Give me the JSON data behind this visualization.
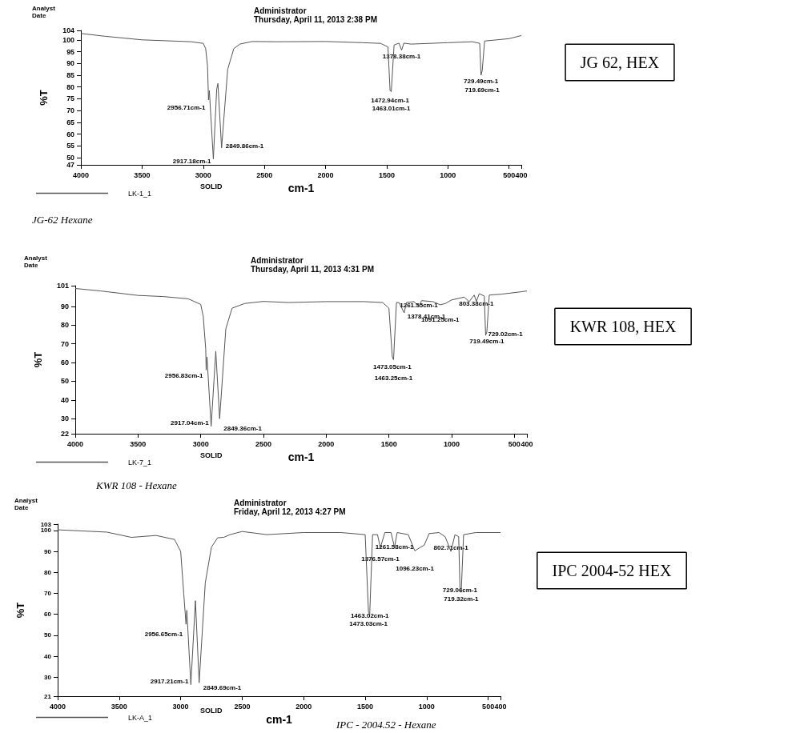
{
  "chart_data": [
    {
      "type": "line",
      "title": "Administrator",
      "subtitle": "Thursday, April 11, 2013 2:38 PM",
      "xlabel": "cm-1",
      "ylabel": "%T",
      "legend": "bottom left",
      "marker": "none",
      "line_style": "solid",
      "xlim": [
        4000,
        400
      ],
      "xticks": [
        4000,
        3500,
        3000,
        2500,
        2000,
        1500,
        1000,
        500,
        400
      ],
      "ylim": [
        47,
        104
      ],
      "yticks": [
        47,
        50,
        55,
        60,
        65,
        70,
        75,
        80,
        85,
        90,
        95,
        100,
        104
      ],
      "x": [
        4000,
        3800,
        3500,
        3300,
        3100,
        3000,
        2980,
        2965,
        2956.71,
        2950,
        2917.18,
        2890,
        2880,
        2849.86,
        2800,
        2750,
        2700,
        2600,
        2400,
        2000,
        1700,
        1550,
        1490,
        1472.94,
        1463.01,
        1440,
        1400,
        1378.38,
        1360,
        1300,
        1000,
        800,
        740,
        729.49,
        719.69,
        700,
        500,
        400
      ],
      "series": [
        {
          "name": "LK-1_1",
          "color": "#555555",
          "values": [
            102.7,
            101.5,
            100,
            99.6,
            99.2,
            98.5,
            96.3,
            89,
            74.5,
            78.5,
            49.5,
            79,
            81.5,
            54.2,
            87.5,
            96.3,
            98.2,
            99.3,
            99.2,
            99.3,
            98.8,
            98.5,
            97,
            78.5,
            78,
            97.8,
            98.6,
            95.6,
            98.6,
            98.2,
            98.8,
            99.2,
            98.5,
            85,
            87,
            99.5,
            100.5,
            101.8
          ]
        }
      ],
      "annotations": [
        "Analyst",
        "Date",
        "SOLID",
        "JG-62 Hexane",
        "JG 62, HEX",
        {
          "text": "2956.71cm-1",
          "x": 2956.71,
          "y": 74.5
        },
        {
          "text": "2917.18cm-1",
          "x": 2917.18,
          "y": 49.5
        },
        {
          "text": "2849.86cm-1",
          "x": 2849.86,
          "y": 54.2
        },
        {
          "text": "1378.38cm-1",
          "x": 1378.38,
          "y": 95.6
        },
        {
          "text": "1472.94cm-1",
          "x": 1472.94,
          "y": 78.5
        },
        {
          "text": "1463.01cm-1",
          "x": 1463.01,
          "y": 78
        },
        {
          "text": "729.49cm-1",
          "x": 729.49,
          "y": 85
        },
        {
          "text": "719.69cm-1",
          "x": 719.69,
          "y": 87
        }
      ]
    },
    {
      "type": "line",
      "title": "Administrator",
      "subtitle": "Thursday, April 11, 2013 4:31 PM",
      "xlabel": "cm-1",
      "ylabel": "%T",
      "legend": "bottom left",
      "marker": "none",
      "line_style": "solid",
      "xlim": [
        4000,
        400
      ],
      "xticks": [
        4000,
        3500,
        3000,
        2500,
        2000,
        1500,
        1000,
        500,
        400
      ],
      "ylim": [
        22,
        101
      ],
      "yticks": [
        22,
        30,
        40,
        50,
        60,
        70,
        80,
        90,
        101
      ],
      "x": [
        4000,
        3800,
        3500,
        3300,
        3100,
        3000,
        2980,
        2960,
        2956.83,
        2950,
        2917.04,
        2880,
        2849.36,
        2800,
        2750,
        2650,
        2500,
        2300,
        2000,
        1700,
        1550,
        1500,
        1473.05,
        1463.25,
        1440,
        1420,
        1378.41,
        1360,
        1300,
        1261.55,
        1240,
        1150,
        1091.25,
        1050,
        1000,
        900,
        860,
        820,
        803.38,
        780,
        740,
        729.02,
        719.49,
        700,
        600,
        450,
        400
      ],
      "series": [
        {
          "name": "LK-7_1",
          "color": "#555555",
          "values": [
            99.5,
            98.2,
            95.8,
            95.2,
            94,
            91,
            84.6,
            67,
            56,
            63,
            26,
            66,
            30,
            78,
            89,
            91.5,
            92.6,
            92,
            92.5,
            92.5,
            92,
            89,
            63,
            61.5,
            92,
            92,
            86.5,
            92,
            92.5,
            89.7,
            93,
            92.5,
            90.8,
            91.5,
            93.4,
            94.9,
            92.5,
            96,
            92.6,
            96.7,
            95.5,
            74.5,
            76.3,
            96,
            96.5,
            97.7,
            98.2
          ]
        }
      ],
      "annotations": [
        "Analyst",
        "Date",
        "SOLID",
        "KWR 108 - Hexane",
        "KWR 108, HEX",
        {
          "text": "2956.83cm-1",
          "x": 2956.83,
          "y": 56
        },
        {
          "text": "2917.04cm-1",
          "x": 2917.04,
          "y": 26
        },
        {
          "text": "2849.36cm-1",
          "x": 2849.36,
          "y": 30
        },
        {
          "text": "1473.05cm-1",
          "x": 1473.05,
          "y": 63
        },
        {
          "text": "1463.25cm-1",
          "x": 1463.25,
          "y": 61.5
        },
        {
          "text": "1378.41cm-1",
          "x": 1378.41,
          "y": 86.5
        },
        {
          "text": "1261.55cm-1",
          "x": 1261.55,
          "y": 89.7
        },
        {
          "text": "1091.25cm-1",
          "x": 1091.25,
          "y": 90.8
        },
        {
          "text": "803.38cm-1",
          "x": 803.38,
          "y": 92.6
        },
        {
          "text": "729.02cm-1",
          "x": 729.02,
          "y": 74.5
        },
        {
          "text": "719.49cm-1",
          "x": 719.49,
          "y": 76.3
        }
      ]
    },
    {
      "type": "line",
      "title": "Administrator",
      "subtitle": "Friday, April 12, 2013 4:27 PM",
      "xlabel": "cm-1",
      "ylabel": "%T",
      "legend": "bottom left",
      "marker": "none",
      "line_style": "solid",
      "xlim": [
        4000,
        400
      ],
      "xticks": [
        4000,
        3500,
        3000,
        2500,
        2000,
        1500,
        1000,
        500,
        400
      ],
      "ylim": [
        21,
        103
      ],
      "yticks": [
        21,
        30,
        40,
        50,
        60,
        70,
        80,
        90,
        100,
        103
      ],
      "x": [
        4000,
        3600,
        3400,
        3200,
        3050,
        3000,
        2975,
        2956.65,
        2950,
        2917.21,
        2880,
        2849.69,
        2800,
        2750,
        2700,
        2650,
        2600,
        2500,
        2300,
        2000,
        1700,
        1500,
        1473.03,
        1463.02,
        1440,
        1400,
        1376.57,
        1340,
        1290,
        1261.58,
        1240,
        1150,
        1096.23,
        1050,
        1020,
        980,
        900,
        850,
        802.71,
        770,
        740,
        729.06,
        719.32,
        700,
        600,
        400
      ],
      "series": [
        {
          "name": "LK-A_1",
          "color": "#555555",
          "values": [
            100.3,
            99.2,
            96.7,
            97.6,
            95.7,
            90,
            70,
            55.3,
            62,
            26.5,
            66.5,
            27.4,
            75,
            92,
            96.5,
            96.7,
            98,
            99.5,
            98,
            99,
            99,
            98,
            61,
            60,
            98,
            98,
            91.8,
            99,
            99,
            92,
            99,
            98,
            90.3,
            92,
            93,
            98.5,
            99,
            97,
            90,
            98,
            97,
            72,
            70.5,
            98,
            99,
            99
          ]
        }
      ],
      "annotations": [
        "Analyst",
        "Date",
        "SOLID",
        "IPC - 2004.52 - Hexane",
        "IPC 2004-52 HEX",
        {
          "text": "2956.65cm-1",
          "x": 2956.65,
          "y": 55.3
        },
        {
          "text": "2917.21cm-1",
          "x": 2917.21,
          "y": 26.5
        },
        {
          "text": "2849.69cm-1",
          "x": 2849.69,
          "y": 27.4
        },
        {
          "text": "1463.02cm-1",
          "x": 1463.02,
          "y": 60
        },
        {
          "text": "1473.03cm-1",
          "x": 1473.03,
          "y": 61
        },
        {
          "text": "1261.58cm-1",
          "x": 1261.58,
          "y": 92
        },
        {
          "text": "1376.57cm-1",
          "x": 1376.57,
          "y": 91.8
        },
        {
          "text": "1096.23cm-1",
          "x": 1096.23,
          "y": 90.3
        },
        {
          "text": "802.71cm-1",
          "x": 802.71,
          "y": 90
        },
        {
          "text": "729.06cm-1",
          "x": 729.06,
          "y": 72
        },
        {
          "text": "719.32cm-1",
          "x": 719.32,
          "y": 70.5
        }
      ]
    }
  ]
}
